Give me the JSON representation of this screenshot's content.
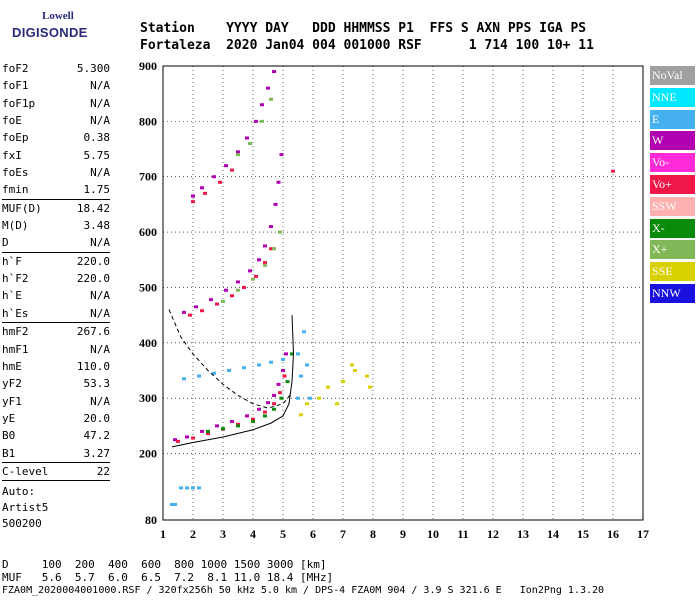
{
  "logo": {
    "line1": "Lowell",
    "line2": "DIGISONDE"
  },
  "header": {
    "row1": "Station    YYYY DAY   DDD HHMMSS P1  FFS S AXN PPS IGA PS",
    "row2": "Fortaleza  2020 Jan04 004 001000 RSF      1 714 100 10+ 11"
  },
  "params": [
    {
      "name": "foF2",
      "value": "5.300"
    },
    {
      "name": "foF1",
      "value": "N/A"
    },
    {
      "name": "foF1p",
      "value": "N/A"
    },
    {
      "name": "foE",
      "value": "N/A"
    },
    {
      "name": "foEp",
      "value": "0.38"
    },
    {
      "name": "fxI",
      "value": "5.75"
    },
    {
      "name": "foEs",
      "value": "N/A"
    },
    {
      "name": "fmin",
      "value": "1.75"
    },
    {
      "sep": true
    },
    {
      "name": "MUF(D)",
      "value": "18.42"
    },
    {
      "name": "M(D)",
      "value": "3.48"
    },
    {
      "name": "D",
      "value": "N/A"
    },
    {
      "sep": true
    },
    {
      "name": "h`F",
      "value": "220.0"
    },
    {
      "name": "h`F2",
      "value": "220.0"
    },
    {
      "name": "h`E",
      "value": "N/A"
    },
    {
      "name": "h`Es",
      "value": "N/A"
    },
    {
      "sep": true
    },
    {
      "name": "hmF2",
      "value": "267.6"
    },
    {
      "name": "hmF1",
      "value": "N/A"
    },
    {
      "name": "hmE",
      "value": "110.0"
    },
    {
      "name": "yF2",
      "value": "53.3"
    },
    {
      "name": "yF1",
      "value": "N/A"
    },
    {
      "name": "yE",
      "value": "20.0"
    },
    {
      "name": "B0",
      "value": "47.2"
    },
    {
      "name": "B1",
      "value": "3.27"
    },
    {
      "sep": true
    },
    {
      "name": "C-level",
      "value": "22"
    },
    {
      "sep": true
    }
  ],
  "auto": {
    "line1": "Auto:",
    "line2": "Artist5",
    "line3": "500200"
  },
  "legend": [
    {
      "label": "NoVal",
      "color": "#a0a0a0"
    },
    {
      "label": "NNE",
      "color": "#00e8ff"
    },
    {
      "label": "E",
      "color": "#44b0f0"
    },
    {
      "label": "W",
      "color": "#b000b0"
    },
    {
      "label": "Vo-",
      "color": "#ff2ad8"
    },
    {
      "label": "Vo+",
      "color": "#f01848"
    },
    {
      "label": "SSW",
      "color": "#ffb0b0"
    },
    {
      "label": "X-",
      "color": "#0a8a0a"
    },
    {
      "label": "X+",
      "color": "#80b858"
    },
    {
      "label": "SSE",
      "color": "#d8d000"
    },
    {
      "label": "NNW",
      "color": "#1a10e0"
    }
  ],
  "bottom": {
    "row1": "D     100  200  400  600  800 1000 1500 3000 [km]",
    "row2": "MUF   5.6  5.7  6.0  6.5  7.2  8.1 11.0 18.4 [MHz]"
  },
  "footer": "FZA0M_2020004001000.RSF / 320fx256h 50 kHz 5.0 km / DPS-4 FZA0M 904 / 3.9 S 321.6 E   Ion2Png 1.3.20",
  "chart_data": {
    "type": "scatter",
    "xlim": [
      1,
      17
    ],
    "ylim": [
      80,
      900
    ],
    "x_ticks": [
      1,
      2,
      3,
      4,
      5,
      6,
      7,
      8,
      9,
      10,
      11,
      12,
      13,
      14,
      15,
      16,
      17
    ],
    "y_ticks": [
      80,
      200,
      300,
      400,
      500,
      600,
      700,
      800,
      900
    ],
    "grid": true,
    "legend_position": "right",
    "series": [
      {
        "color_key": "W",
        "points": [
          [
            1.4,
            225
          ],
          [
            1.8,
            230
          ],
          [
            2.3,
            240
          ],
          [
            2.8,
            250
          ],
          [
            3.3,
            258
          ],
          [
            3.8,
            268
          ],
          [
            4.2,
            280
          ],
          [
            4.5,
            292
          ],
          [
            4.7,
            305
          ],
          [
            4.85,
            325
          ],
          [
            5.0,
            350
          ],
          [
            5.1,
            380
          ]
        ]
      },
      {
        "color_key": "Vo+",
        "points": [
          [
            1.5,
            222
          ],
          [
            2.0,
            228
          ],
          [
            2.5,
            236
          ],
          [
            3.0,
            244
          ],
          [
            3.5,
            253
          ],
          [
            4.0,
            262
          ],
          [
            4.4,
            275
          ],
          [
            4.7,
            290
          ],
          [
            4.9,
            310
          ],
          [
            5.05,
            340
          ]
        ]
      },
      {
        "color_key": "X-",
        "points": [
          [
            2.5,
            240
          ],
          [
            3.0,
            245
          ],
          [
            3.5,
            250
          ],
          [
            4.0,
            258
          ],
          [
            4.4,
            268
          ],
          [
            4.7,
            280
          ],
          [
            4.95,
            300
          ],
          [
            5.15,
            330
          ],
          [
            5.3,
            380
          ]
        ]
      },
      {
        "color_key": "E",
        "points": [
          [
            1.7,
            335
          ],
          [
            2.2,
            340
          ],
          [
            2.7,
            345
          ],
          [
            3.2,
            350
          ],
          [
            3.7,
            355
          ],
          [
            4.2,
            360
          ],
          [
            4.6,
            365
          ],
          [
            5.0,
            370
          ],
          [
            5.5,
            380
          ],
          [
            5.7,
            420
          ],
          [
            5.8,
            360
          ],
          [
            5.9,
            300
          ],
          [
            5.5,
            300
          ],
          [
            5.6,
            340
          ]
        ]
      },
      {
        "color_key": "SSE",
        "points": [
          [
            5.6,
            270
          ],
          [
            5.8,
            290
          ],
          [
            6.2,
            300
          ],
          [
            6.5,
            320
          ],
          [
            7.0,
            330
          ],
          [
            7.4,
            350
          ],
          [
            7.8,
            340
          ],
          [
            6.8,
            290
          ],
          [
            7.3,
            360
          ],
          [
            7.9,
            320
          ]
        ]
      },
      {
        "color_key": "W",
        "points": [
          [
            1.7,
            455
          ],
          [
            2.1,
            465
          ],
          [
            2.6,
            478
          ],
          [
            3.1,
            495
          ],
          [
            3.5,
            510
          ],
          [
            3.9,
            530
          ],
          [
            4.2,
            550
          ],
          [
            4.4,
            575
          ],
          [
            4.6,
            610
          ],
          [
            4.75,
            650
          ],
          [
            4.85,
            690
          ],
          [
            4.95,
            740
          ]
        ]
      },
      {
        "color_key": "Vo+",
        "points": [
          [
            1.9,
            450
          ],
          [
            2.3,
            458
          ],
          [
            2.8,
            470
          ],
          [
            3.3,
            485
          ],
          [
            3.7,
            500
          ],
          [
            4.1,
            520
          ],
          [
            4.4,
            545
          ],
          [
            4.6,
            570
          ]
        ]
      },
      {
        "color_key": "X+",
        "points": [
          [
            3.0,
            475
          ],
          [
            3.5,
            495
          ],
          [
            4.0,
            515
          ],
          [
            4.4,
            540
          ],
          [
            4.7,
            570
          ],
          [
            4.9,
            600
          ]
        ]
      },
      {
        "color_key": "W",
        "points": [
          [
            2.0,
            665
          ],
          [
            2.3,
            680
          ],
          [
            2.7,
            700
          ],
          [
            3.1,
            720
          ],
          [
            3.5,
            745
          ],
          [
            3.8,
            770
          ],
          [
            4.1,
            800
          ],
          [
            4.3,
            830
          ],
          [
            4.5,
            860
          ],
          [
            4.7,
            890
          ]
        ]
      },
      {
        "color_key": "Vo+",
        "points": [
          [
            2.0,
            655
          ],
          [
            2.4,
            670
          ],
          [
            2.9,
            690
          ],
          [
            3.3,
            712
          ]
        ]
      },
      {
        "color_key": "X+",
        "points": [
          [
            3.5,
            740
          ],
          [
            3.9,
            760
          ],
          [
            4.3,
            800
          ],
          [
            4.6,
            840
          ]
        ]
      },
      {
        "color_key": "E",
        "points": [
          [
            1.6,
            138
          ],
          [
            1.8,
            138
          ],
          [
            2.0,
            138
          ],
          [
            2.2,
            138
          ],
          [
            1.3,
            108
          ],
          [
            1.4,
            108
          ]
        ]
      },
      {
        "color_key": "Vo+",
        "points": [
          [
            16.0,
            710
          ]
        ]
      }
    ],
    "lines": [
      {
        "name": "true-height",
        "style": "solid",
        "points": [
          [
            1.3,
            212
          ],
          [
            2.0,
            220
          ],
          [
            3.0,
            230
          ],
          [
            4.0,
            243
          ],
          [
            4.6,
            255
          ],
          [
            5.0,
            268
          ],
          [
            5.2,
            290
          ],
          [
            5.3,
            330
          ],
          [
            5.35,
            380
          ],
          [
            5.3,
            450
          ]
        ]
      },
      {
        "name": "model",
        "style": "dashed",
        "points": [
          [
            1.2,
            460
          ],
          [
            1.6,
            410
          ],
          [
            2.0,
            380
          ],
          [
            2.5,
            350
          ],
          [
            3.0,
            325
          ],
          [
            3.5,
            305
          ],
          [
            4.0,
            290
          ],
          [
            4.5,
            282
          ],
          [
            5.0,
            290
          ],
          [
            5.3,
            310
          ]
        ]
      }
    ]
  }
}
